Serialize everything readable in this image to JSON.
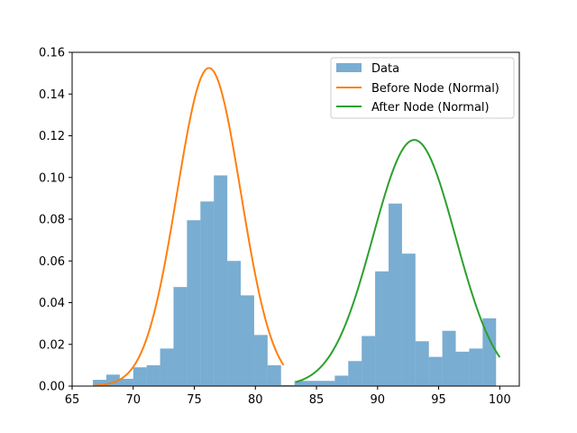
{
  "chart_data": {
    "type": "bar",
    "xlim": [
      65,
      101.6
    ],
    "ylim": [
      0,
      0.16
    ],
    "x_ticks": [
      65,
      70,
      75,
      80,
      85,
      90,
      95,
      100
    ],
    "y_ticks": [
      0.0,
      0.02,
      0.04,
      0.06,
      0.08,
      0.1,
      0.12,
      0.14,
      0.16
    ],
    "histogram": {
      "name": "Data",
      "color": "#1f77b4",
      "alpha": 0.6,
      "bin_width": 1.1,
      "bin_starts": [
        66.7,
        67.8,
        68.9,
        70.0,
        71.1,
        72.2,
        73.3,
        74.4,
        75.5,
        76.6,
        77.7,
        78.8,
        79.9,
        81.0,
        82.1,
        83.2,
        84.3,
        85.4,
        86.5,
        87.6,
        88.7,
        89.8,
        90.9,
        92.0,
        93.1,
        94.2,
        95.3,
        96.4,
        97.5,
        98.6,
        99.7
      ],
      "values": [
        0.003,
        0.0055,
        0.0035,
        0.009,
        0.01,
        0.018,
        0.0475,
        0.0795,
        0.0885,
        0.101,
        0.06,
        0.0435,
        0.0245,
        0.01,
        0.0005,
        0.0025,
        0.0025,
        0.0025,
        0.005,
        0.012,
        0.024,
        0.055,
        0.0875,
        0.0635,
        0.0215,
        0.014,
        0.0265,
        0.0165,
        0.018,
        0.0325,
        0.0
      ]
    },
    "series": [
      {
        "name": "Before Node (Normal)",
        "color": "#ff7f0e",
        "mean": 76.2,
        "peak": 0.1525,
        "x_range": [
          66.7,
          82.3
        ]
      },
      {
        "name": "After Node (Normal)",
        "color": "#2ca02c",
        "mean": 93.0,
        "peak": 0.118,
        "x_range": [
          83.3,
          100.0
        ]
      }
    ],
    "legend": {
      "placement": "top-right",
      "entries": [
        "Data",
        "Before Node (Normal)",
        "After Node (Normal)"
      ]
    }
  }
}
